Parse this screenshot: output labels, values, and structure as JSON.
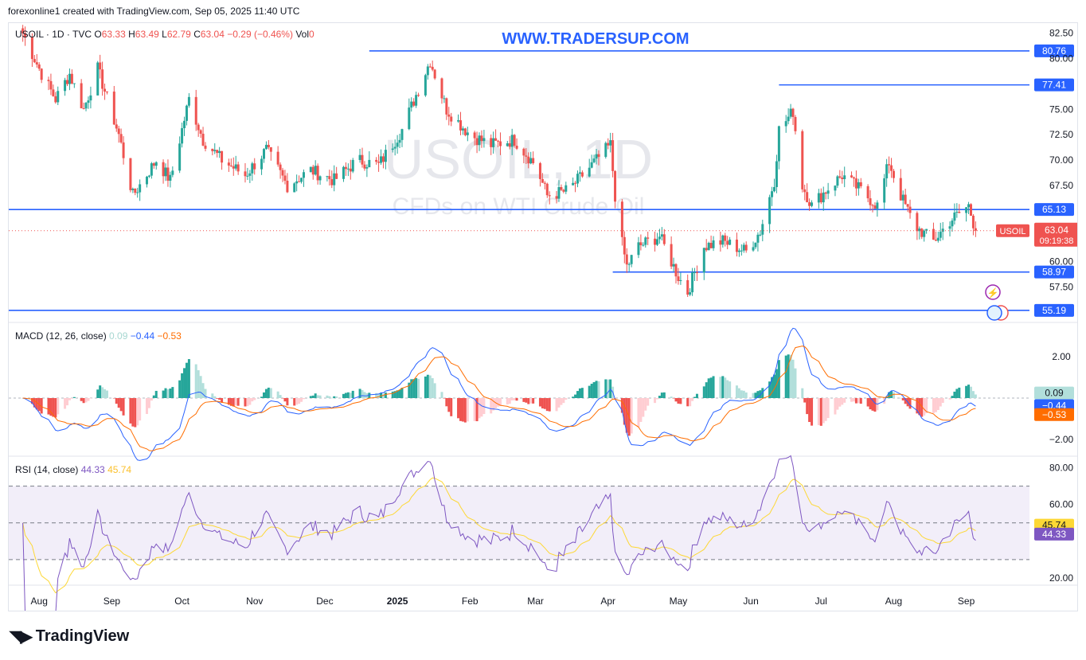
{
  "header": {
    "text": "forexonline1 created with TradingView.com, Sep 05, 2025 11:40 UTC"
  },
  "watermark": {
    "symbol": "USOIL, 1D",
    "description": "CFDs on WTI Crude Oil"
  },
  "overlay_text": "WWW.TRADERSUP.COM",
  "legend": {
    "symbol": "USOIL · 1D · TVC",
    "o_label": "O",
    "o": "63.33",
    "h_label": "H",
    "h": "63.49",
    "l_label": "L",
    "l": "62.79",
    "c_label": "C",
    "c": "63.04",
    "change": "−0.29 (−0.46%)",
    "vol_label": "Vol",
    "vol": "0"
  },
  "macd_legend": {
    "title": "MACD (12, 26, close)",
    "hist": "0.09",
    "macd": "−0.44",
    "signal": "−0.53"
  },
  "rsi_legend": {
    "title": "RSI (14, close)",
    "rsi": "44.33",
    "ma": "45.74"
  },
  "price_tag": {
    "symbol": "USOIL",
    "price": "63.04",
    "countdown": "09:19:38"
  },
  "footer": {
    "brand": "TradingView"
  },
  "colors": {
    "up": "#26a69a",
    "down": "#ef5350",
    "level": "#2962ff",
    "macd": "#2962ff",
    "signal": "#ff6d00",
    "rsi": "#7e57c2",
    "rsi_ma": "#fdd835"
  },
  "chart_data": {
    "type": "candlestick",
    "x_ticks": [
      "Aug",
      "Sep",
      "Oct",
      "Nov",
      "Dec",
      "2025",
      "Feb",
      "Mar",
      "Apr",
      "May",
      "Jun",
      "Jul",
      "Aug",
      "Sep"
    ],
    "price_ticks": [
      "82.50",
      "80.00",
      "75.00",
      "72.50",
      "70.00",
      "67.50",
      "60.00",
      "57.50"
    ],
    "ylim": [
      54,
      83.5
    ],
    "levels": [
      {
        "value": 80.76,
        "label": "80.76"
      },
      {
        "value": 77.41,
        "label": "77.41"
      },
      {
        "value": 65.13,
        "label": "65.13"
      },
      {
        "value": 58.97,
        "label": "58.97"
      },
      {
        "value": 55.19,
        "label": "55.19"
      }
    ],
    "last_price": 63.04,
    "price_path": [
      [
        "Jul 25",
        82.5
      ],
      [
        "Aug 2",
        78.5
      ],
      [
        "Aug 8",
        76.0
      ],
      [
        "Aug 14",
        78.5
      ],
      [
        "Aug 20",
        75.0
      ],
      [
        "Aug 26",
        79.0
      ],
      [
        "Sep 4",
        72.5
      ],
      [
        "Sep 10",
        66.5
      ],
      [
        "Sep 20",
        70.0
      ],
      [
        "Sep 26",
        68.0
      ],
      [
        "Oct 4",
        76.0
      ],
      [
        "Oct 10",
        72.0
      ],
      [
        "Oct 18",
        70.0
      ],
      [
        "Oct 28",
        68.5
      ],
      [
        "Nov 6",
        71.0
      ],
      [
        "Nov 15",
        67.5
      ],
      [
        "Nov 25",
        69.0
      ],
      [
        "Dec 5",
        68.0
      ],
      [
        "Dec 15",
        70.0
      ],
      [
        "Dec 24",
        69.5
      ],
      [
        "Jan 3",
        73.0
      ],
      [
        "Jan 10",
        77.0
      ],
      [
        "Jan 15",
        79.8
      ],
      [
        "Jan 22",
        75.0
      ],
      [
        "Feb 1",
        72.5
      ],
      [
        "Feb 10",
        71.5
      ],
      [
        "Feb 20",
        72.0
      ],
      [
        "Mar 1",
        69.5
      ],
      [
        "Mar 6",
        66.5
      ],
      [
        "Mar 15",
        67.0
      ],
      [
        "Mar 25",
        69.5
      ],
      [
        "Apr 2",
        71.5
      ],
      [
        "Apr 5",
        64.0
      ],
      [
        "Apr 9",
        59.5
      ],
      [
        "Apr 14",
        61.5
      ],
      [
        "Apr 23",
        62.5
      ],
      [
        "May 1",
        58.5
      ],
      [
        "May 5",
        57.0
      ],
      [
        "May 12",
        61.5
      ],
      [
        "May 20",
        62.0
      ],
      [
        "May 30",
        61.0
      ],
      [
        "Jun 5",
        63.0
      ],
      [
        "Jun 11",
        68.0
      ],
      [
        "Jun 13",
        73.0
      ],
      [
        "Jun 19",
        74.8
      ],
      [
        "Jun 23",
        67.5
      ],
      [
        "Jun 27",
        65.5
      ],
      [
        "Jul 3",
        67.0
      ],
      [
        "Jul 10",
        68.5
      ],
      [
        "Jul 18",
        67.0
      ],
      [
        "Jul 25",
        65.5
      ],
      [
        "Jul 30",
        69.8
      ],
      [
        "Aug 4",
        66.5
      ],
      [
        "Aug 10",
        63.5
      ],
      [
        "Aug 18",
        62.0
      ],
      [
        "Aug 25",
        64.0
      ],
      [
        "Sep 2",
        65.5
      ],
      [
        "Sep 5",
        63.04
      ]
    ],
    "macd_ticks": [
      "2.00",
      "−2.00"
    ],
    "macd_last": {
      "hist": 0.09,
      "macd": -0.44,
      "signal": -0.53
    },
    "rsi_ticks": [
      "80.00",
      "60.00",
      "20.00"
    ],
    "rsi_bands": [
      70,
      50,
      30
    ],
    "rsi_last": {
      "rsi": 44.33,
      "ma": 45.74
    }
  }
}
